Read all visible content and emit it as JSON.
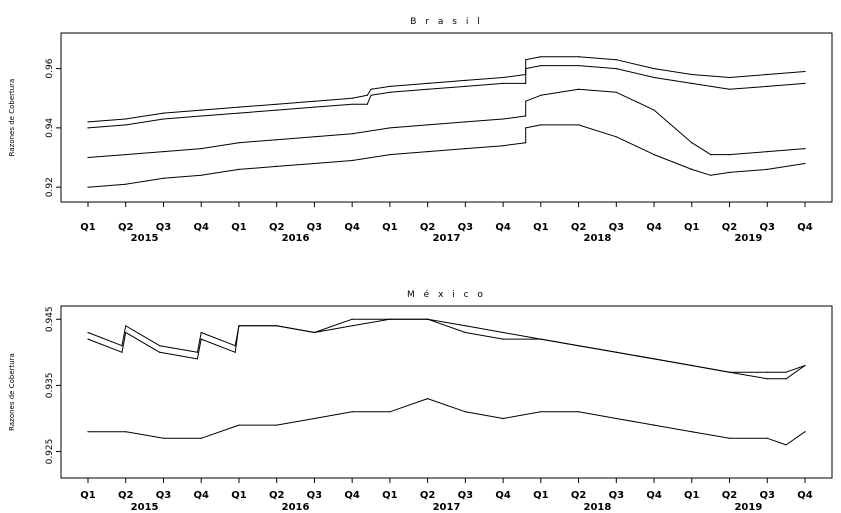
{
  "chart_data": [
    {
      "type": "line",
      "title": "B r a s i l",
      "ylabel": "Razones de Cobertura",
      "ylim": [
        0.915,
        0.972
      ],
      "yticks": [
        "0.92",
        "0.94",
        "0.96"
      ],
      "yticks_values": [
        0.92,
        0.94,
        0.96
      ],
      "quarter_labels": [
        "Q1",
        "Q2",
        "Q3",
        "Q4",
        "Q1",
        "Q2",
        "Q3",
        "Q4",
        "Q1",
        "Q2",
        "Q3",
        "Q4",
        "Q1",
        "Q2",
        "Q3",
        "Q4",
        "Q1",
        "Q2",
        "Q3",
        "Q4"
      ],
      "year_labels": [
        "2015",
        "2016",
        "2017",
        "2018",
        "2019"
      ],
      "grid": false,
      "series": [
        {
          "x": [
            0,
            1,
            2,
            3,
            4,
            5,
            6,
            7,
            7.4,
            7.5,
            8,
            9,
            10,
            11,
            11.6,
            11.6,
            12,
            13,
            14,
            15,
            16,
            17,
            18,
            19
          ],
          "values": [
            0.942,
            0.943,
            0.945,
            0.946,
            0.947,
            0.948,
            0.949,
            0.95,
            0.951,
            0.953,
            0.954,
            0.955,
            0.956,
            0.957,
            0.958,
            0.963,
            0.964,
            0.964,
            0.963,
            0.96,
            0.958,
            0.957,
            0.958,
            0.959
          ]
        },
        {
          "x": [
            0,
            1,
            2,
            3,
            4,
            5,
            6,
            7,
            7.4,
            7.5,
            8,
            9,
            10,
            11,
            11.6,
            11.6,
            12,
            13,
            14,
            15,
            16,
            17,
            18,
            19
          ],
          "values": [
            0.94,
            0.941,
            0.943,
            0.944,
            0.945,
            0.946,
            0.947,
            0.948,
            0.948,
            0.951,
            0.952,
            0.953,
            0.954,
            0.955,
            0.955,
            0.96,
            0.961,
            0.961,
            0.96,
            0.957,
            0.955,
            0.953,
            0.954,
            0.955
          ]
        },
        {
          "x": [
            0,
            1,
            2,
            3,
            4,
            5,
            6,
            7,
            8,
            9,
            10,
            11,
            11.6,
            11.6,
            12,
            13,
            14,
            15,
            16,
            16.5,
            17,
            18,
            19
          ],
          "values": [
            0.93,
            0.931,
            0.932,
            0.933,
            0.935,
            0.936,
            0.937,
            0.938,
            0.94,
            0.941,
            0.942,
            0.943,
            0.944,
            0.949,
            0.951,
            0.953,
            0.952,
            0.946,
            0.935,
            0.931,
            0.931,
            0.932,
            0.933
          ]
        },
        {
          "x": [
            0,
            1,
            2,
            3,
            4,
            5,
            6,
            7,
            8,
            9,
            10,
            11,
            11.6,
            11.6,
            12,
            13,
            14,
            15,
            16,
            16.5,
            17,
            18,
            19
          ],
          "values": [
            0.92,
            0.921,
            0.923,
            0.924,
            0.926,
            0.927,
            0.928,
            0.929,
            0.931,
            0.932,
            0.933,
            0.934,
            0.935,
            0.94,
            0.941,
            0.941,
            0.937,
            0.931,
            0.926,
            0.924,
            0.925,
            0.926,
            0.928
          ]
        }
      ]
    },
    {
      "type": "line",
      "title": "M é x i c o",
      "ylabel": "Razones de Cobertura",
      "ylim": [
        0.921,
        0.947
      ],
      "yticks": [
        "0.925",
        "0.935",
        "0.945"
      ],
      "yticks_values": [
        0.925,
        0.935,
        0.945
      ],
      "quarter_labels": [
        "Q1",
        "Q2",
        "Q3",
        "Q4",
        "Q1",
        "Q2",
        "Q3",
        "Q4",
        "Q1",
        "Q2",
        "Q3",
        "Q4",
        "Q1",
        "Q2",
        "Q3",
        "Q4",
        "Q1",
        "Q2",
        "Q3",
        "Q4"
      ],
      "year_labels": [
        "2015",
        "2016",
        "2017",
        "2018",
        "2019"
      ],
      "grid": false,
      "series": [
        {
          "x": [
            0,
            0.9,
            1.0,
            1.9,
            2.9,
            3.0,
            3.9,
            4.0,
            5,
            6,
            7,
            8,
            9,
            10,
            11,
            12,
            13,
            14,
            15,
            16,
            17,
            18,
            18.5,
            19
          ],
          "values": [
            0.943,
            0.941,
            0.944,
            0.941,
            0.94,
            0.943,
            0.941,
            0.944,
            0.944,
            0.943,
            0.945,
            0.945,
            0.945,
            0.944,
            0.943,
            0.942,
            0.941,
            0.94,
            0.939,
            0.938,
            0.937,
            0.937,
            0.937,
            0.938
          ]
        },
        {
          "x": [
            0,
            0.9,
            1.0,
            1.9,
            2.9,
            3.0,
            3.9,
            4.0,
            5,
            6,
            7,
            8,
            9,
            10,
            11,
            12,
            13,
            14,
            15,
            16,
            17,
            18,
            18.5,
            19
          ],
          "values": [
            0.942,
            0.94,
            0.943,
            0.94,
            0.939,
            0.942,
            0.94,
            0.944,
            0.944,
            0.943,
            0.944,
            0.945,
            0.945,
            0.943,
            0.942,
            0.942,
            0.941,
            0.94,
            0.939,
            0.938,
            0.937,
            0.936,
            0.936,
            0.938
          ]
        },
        {
          "x": [
            0,
            1,
            2,
            3,
            4,
            5,
            6,
            7,
            8,
            9,
            10,
            11,
            12,
            13,
            14,
            15,
            16,
            17,
            18,
            18.5,
            19
          ],
          "values": [
            0.928,
            0.928,
            0.927,
            0.927,
            0.929,
            0.929,
            0.93,
            0.931,
            0.931,
            0.933,
            0.931,
            0.93,
            0.931,
            0.931,
            0.93,
            0.929,
            0.928,
            0.927,
            0.927,
            0.926,
            0.928
          ]
        }
      ]
    }
  ]
}
